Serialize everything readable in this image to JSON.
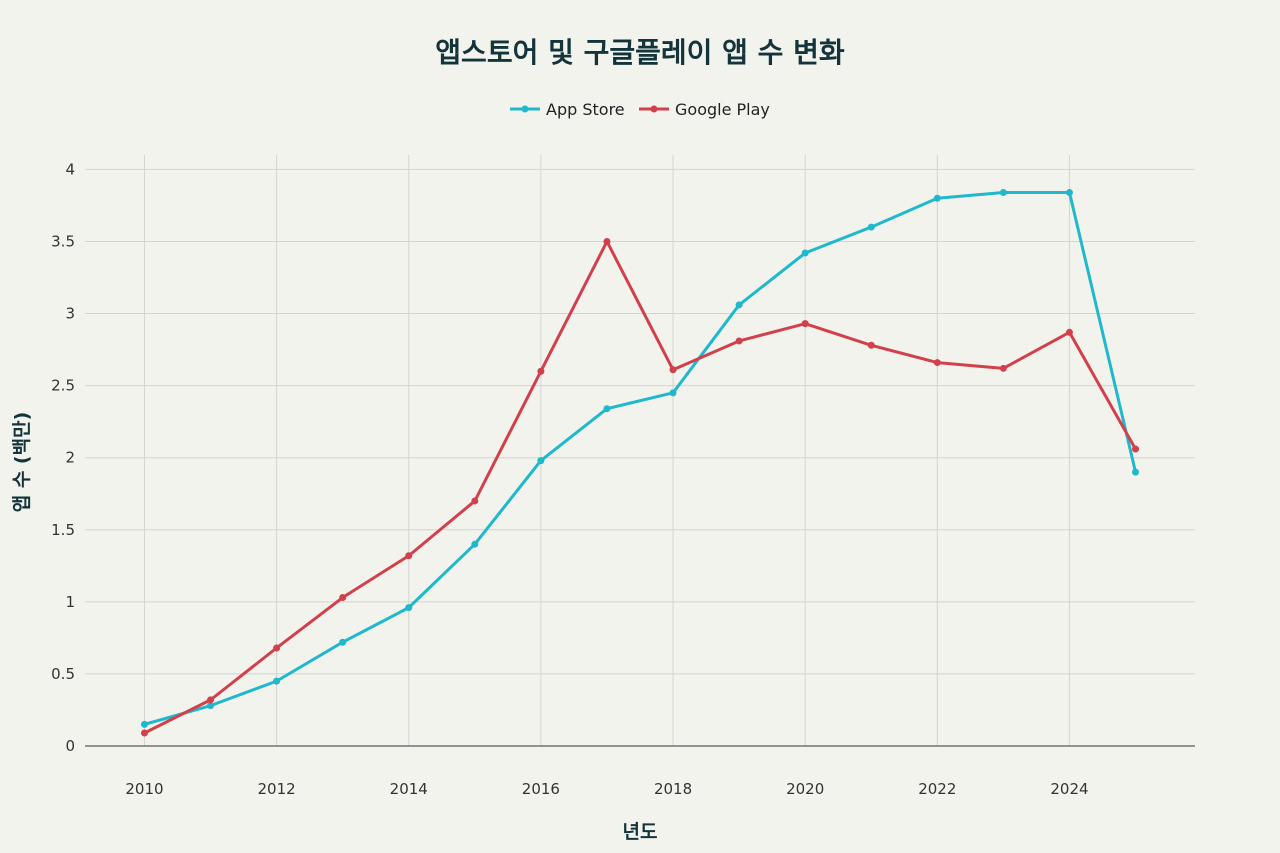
{
  "chart_data": {
    "type": "line",
    "title": "앱스토어 및 구글플레이 앱 수 변화",
    "xlabel": "년도",
    "ylabel": "앱 수 (백만)",
    "x": [
      2010,
      2011,
      2012,
      2013,
      2014,
      2015,
      2016,
      2017,
      2018,
      2019,
      2020,
      2021,
      2022,
      2023,
      2024,
      2025
    ],
    "xticks": [
      "2010",
      "2012",
      "2014",
      "2016",
      "2018",
      "2020",
      "2022",
      "2024"
    ],
    "yticks": [
      "0",
      "0.5",
      "1",
      "1.5",
      "2",
      "2.5",
      "3",
      "3.5",
      "4"
    ],
    "xlim": [
      2009.1,
      2025.9
    ],
    "ylim": [
      0,
      4.1
    ],
    "grid": true,
    "legend_position": "top-center",
    "series": [
      {
        "name": "App Store",
        "color": "#1fb8cd",
        "values": [
          0.15,
          0.28,
          0.45,
          0.72,
          0.96,
          1.4,
          1.98,
          2.34,
          2.45,
          3.06,
          3.42,
          3.6,
          3.8,
          3.84,
          3.84,
          1.9
        ]
      },
      {
        "name": "Google Play",
        "color": "#d2404b",
        "values": [
          0.09,
          0.32,
          0.68,
          1.03,
          1.32,
          1.7,
          2.6,
          3.5,
          2.61,
          2.81,
          2.93,
          2.78,
          2.66,
          2.62,
          2.87,
          2.06
        ]
      }
    ]
  }
}
